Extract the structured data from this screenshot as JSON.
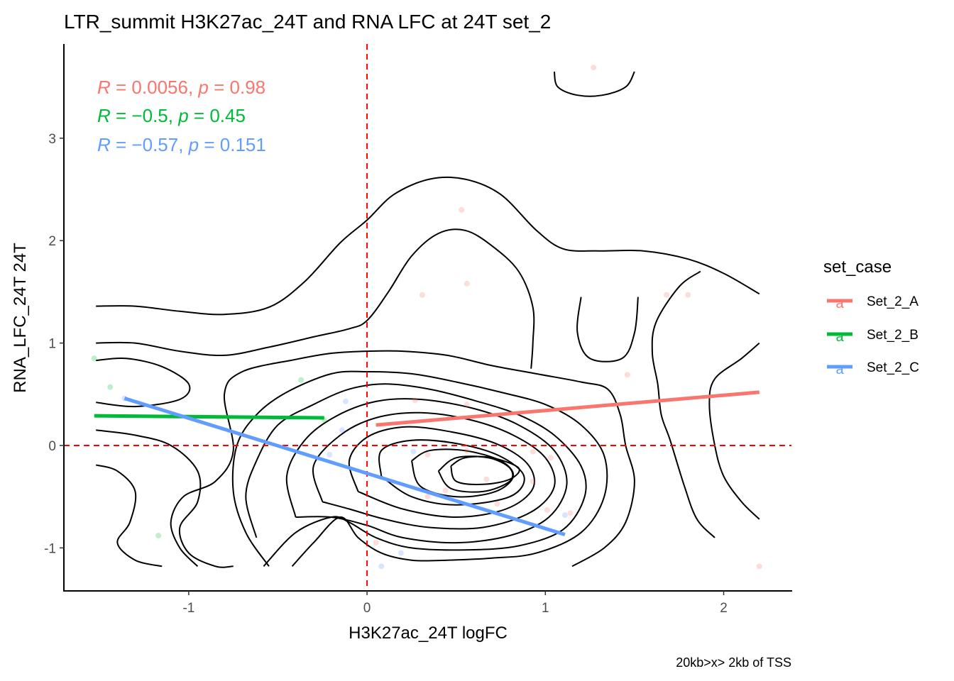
{
  "chart_data": {
    "type": "scatter",
    "title": "LTR_summit H3K27ac_24T and RNA LFC at 24T set_2",
    "xlabel": "H3K27ac_24T logFC",
    "ylabel": "RNA_LFC_24T 24T",
    "caption": "20kb>x> 2kb of TSS",
    "xlim": [
      -1.7,
      2.38
    ],
    "ylim": [
      -1.42,
      3.92
    ],
    "xticks": [
      -1,
      0,
      1,
      2
    ],
    "yticks": [
      -1,
      0,
      1,
      2,
      3
    ],
    "xtick_labels": [
      "-1",
      "0",
      "1",
      "2"
    ],
    "ytick_labels": [
      "-1",
      "0",
      "1",
      "2",
      "3"
    ],
    "grid": false,
    "reference_lines": {
      "x": 0,
      "y": 0,
      "color": "#ff0000",
      "style": "dashed"
    },
    "legend": {
      "title": "set_case",
      "position": "right",
      "key_glyph": "a"
    },
    "series": [
      {
        "name": "Set_2_A",
        "color": "#f8766d",
        "stat_label": {
          "r_value": "0.0056",
          "p_value": "0.98"
        },
        "fit": {
          "x": [
            0.05,
            2.2
          ],
          "y": [
            0.2,
            0.52
          ]
        },
        "points": [
          [
            1.27,
            3.69
          ],
          [
            0.53,
            2.3
          ],
          [
            0.31,
            1.47
          ],
          [
            0.56,
            1.58
          ],
          [
            1.68,
            1.47
          ],
          [
            1.8,
            1.47
          ],
          [
            1.46,
            0.69
          ],
          [
            0.27,
            0.44
          ],
          [
            0.56,
            0.4
          ],
          [
            0.56,
            -0.05
          ],
          [
            0.34,
            -0.09
          ],
          [
            0.93,
            -0.06
          ],
          [
            1.03,
            -0.12
          ],
          [
            0.67,
            -0.33
          ],
          [
            0.93,
            -0.35
          ],
          [
            0.44,
            -0.44
          ],
          [
            0.73,
            -0.57
          ],
          [
            1.01,
            -0.63
          ],
          [
            1.14,
            -0.66
          ],
          [
            0.34,
            -0.5
          ],
          [
            0.05,
            -0.95
          ],
          [
            2.2,
            -1.18
          ]
        ]
      },
      {
        "name": "Set_2_B",
        "color": "#00ba38",
        "stat_label": {
          "r_value": "−0.5",
          "p_value": "0.45"
        },
        "fit": {
          "x": [
            -1.53,
            -0.24
          ],
          "y": [
            0.29,
            0.27
          ]
        },
        "points": [
          [
            -1.53,
            0.85
          ],
          [
            -1.44,
            0.57
          ],
          [
            -0.37,
            0.64
          ],
          [
            -0.24,
            0.25
          ],
          [
            -1.17,
            -0.88
          ]
        ]
      },
      {
        "name": "Set_2_C",
        "color": "#619cff",
        "stat_label": {
          "r_value": "−0.57",
          "p_value": "0.151"
        },
        "fit": {
          "x": [
            -1.36,
            1.11
          ],
          "y": [
            0.46,
            -0.87
          ]
        },
        "points": [
          [
            -1.36,
            0.46
          ],
          [
            -0.12,
            0.43
          ],
          [
            -0.14,
            0.15
          ],
          [
            -0.21,
            -0.09
          ],
          [
            0.26,
            -0.06
          ],
          [
            1.11,
            -0.68
          ],
          [
            0.19,
            -1.05
          ],
          [
            0.08,
            -1.18
          ]
        ]
      }
    ],
    "density_contours": [
      [
        [
          -1.52,
          1.36
        ],
        [
          -1.3,
          1.36
        ],
        [
          -1.05,
          1.31
        ],
        [
          -0.8,
          1.28
        ],
        [
          -0.55,
          1.35
        ],
        [
          -0.35,
          1.6
        ],
        [
          -0.15,
          1.98
        ],
        [
          0.0,
          2.2
        ],
        [
          0.15,
          2.45
        ],
        [
          0.35,
          2.6
        ],
        [
          0.55,
          2.6
        ],
        [
          0.75,
          2.45
        ],
        [
          0.95,
          2.1
        ],
        [
          1.1,
          1.92
        ],
        [
          1.3,
          1.9
        ],
        [
          1.55,
          1.9
        ],
        [
          1.8,
          1.82
        ],
        [
          2.0,
          1.68
        ],
        [
          2.2,
          1.48
        ]
      ],
      [
        [
          -1.52,
          1.0
        ],
        [
          -1.3,
          1.0
        ],
        [
          -1.05,
          0.92
        ],
        [
          -0.8,
          0.88
        ],
        [
          -0.55,
          0.96
        ],
        [
          -0.3,
          1.06
        ],
        [
          -0.1,
          1.14
        ],
        [
          0.0,
          1.22
        ],
        [
          0.12,
          1.5
        ],
        [
          0.25,
          1.85
        ],
        [
          0.4,
          2.07
        ],
        [
          0.55,
          2.1
        ],
        [
          0.7,
          1.95
        ],
        [
          0.85,
          1.7
        ],
        [
          0.93,
          1.35
        ],
        [
          0.93,
          1.0
        ],
        [
          0.92,
          0.75
        ]
      ],
      [
        [
          -1.52,
          0.83
        ],
        [
          -1.35,
          0.85
        ],
        [
          -1.15,
          0.77
        ],
        [
          -1.0,
          0.6
        ],
        [
          -1.05,
          0.45
        ],
        [
          -1.3,
          0.38
        ],
        [
          -1.52,
          0.42
        ]
      ],
      [
        [
          -1.52,
          0.15
        ],
        [
          -1.3,
          0.1
        ],
        [
          -1.1,
          0.0
        ],
        [
          -0.95,
          -0.25
        ],
        [
          -0.95,
          -0.55
        ],
        [
          -1.05,
          -0.8
        ],
        [
          -1.0,
          -1.05
        ],
        [
          -0.85,
          -1.18
        ],
        [
          -0.75,
          -1.18
        ]
      ],
      [
        [
          -1.52,
          -0.19
        ],
        [
          -1.4,
          -0.25
        ],
        [
          -1.3,
          -0.45
        ],
        [
          -1.33,
          -0.75
        ],
        [
          -1.4,
          -0.95
        ],
        [
          -1.3,
          -1.12
        ],
        [
          -1.15,
          -1.18
        ]
      ],
      [
        [
          -0.95,
          -1.18
        ],
        [
          -1.05,
          -1.0
        ],
        [
          -1.1,
          -0.75
        ],
        [
          -1.03,
          -0.5
        ],
        [
          -0.85,
          -0.35
        ],
        [
          -0.75,
          -0.05
        ],
        [
          -0.8,
          0.5
        ],
        [
          -0.7,
          0.72
        ],
        [
          -0.4,
          0.84
        ],
        [
          -0.2,
          0.9
        ],
        [
          0.0,
          0.92
        ],
        [
          0.2,
          0.92
        ],
        [
          0.45,
          0.88
        ],
        [
          0.7,
          0.78
        ],
        [
          0.95,
          0.7
        ],
        [
          1.2,
          0.62
        ],
        [
          1.35,
          0.55
        ],
        [
          1.42,
          0.3
        ],
        [
          1.45,
          0.0
        ],
        [
          1.5,
          -0.35
        ],
        [
          1.45,
          -0.75
        ],
        [
          1.33,
          -1.0
        ],
        [
          1.15,
          -1.18
        ]
      ],
      [
        [
          -0.55,
          -1.18
        ],
        [
          -0.68,
          -0.85
        ],
        [
          -0.75,
          -0.45
        ],
        [
          -0.73,
          0.0
        ],
        [
          -0.62,
          0.3
        ],
        [
          -0.45,
          0.52
        ],
        [
          -0.2,
          0.7
        ],
        [
          0.0,
          0.72
        ],
        [
          0.25,
          0.7
        ],
        [
          0.5,
          0.62
        ],
        [
          0.75,
          0.52
        ],
        [
          1.0,
          0.4
        ],
        [
          1.2,
          0.2
        ],
        [
          1.33,
          -0.1
        ],
        [
          1.33,
          -0.5
        ],
        [
          1.2,
          -0.85
        ],
        [
          0.95,
          -1.05
        ],
        [
          0.7,
          -1.1
        ],
        [
          0.45,
          -1.12
        ],
        [
          0.25,
          -1.12
        ],
        [
          0.08,
          -1.05
        ],
        [
          -0.05,
          -0.9
        ],
        [
          -0.15,
          -0.7
        ],
        [
          -0.3,
          -0.95
        ],
        [
          -0.42,
          -1.18
        ]
      ],
      [
        [
          -0.62,
          -0.9
        ],
        [
          -0.68,
          -0.5
        ],
        [
          -0.62,
          -0.15
        ],
        [
          -0.5,
          0.2
        ],
        [
          -0.3,
          0.4
        ],
        [
          -0.1,
          0.55
        ],
        [
          0.1,
          0.6
        ],
        [
          0.35,
          0.55
        ],
        [
          0.6,
          0.44
        ],
        [
          0.85,
          0.3
        ],
        [
          1.05,
          0.1
        ],
        [
          1.2,
          -0.2
        ],
        [
          1.22,
          -0.5
        ],
        [
          1.1,
          -0.82
        ],
        [
          0.85,
          -0.98
        ],
        [
          0.55,
          -1.02
        ],
        [
          0.25,
          -1.0
        ],
        [
          0.05,
          -0.9
        ],
        [
          -0.1,
          -0.75
        ],
        [
          -0.2,
          -0.7
        ],
        [
          -0.4,
          -0.85
        ],
        [
          -0.58,
          -1.18
        ]
      ],
      [
        [
          -0.4,
          -0.7
        ],
        [
          -0.45,
          -0.3
        ],
        [
          -0.35,
          0.05
        ],
        [
          -0.18,
          0.28
        ],
        [
          0.05,
          0.43
        ],
        [
          0.3,
          0.45
        ],
        [
          0.6,
          0.36
        ],
        [
          0.85,
          0.2
        ],
        [
          1.05,
          -0.05
        ],
        [
          1.12,
          -0.38
        ],
        [
          1.02,
          -0.7
        ],
        [
          0.8,
          -0.88
        ],
        [
          0.5,
          -0.95
        ],
        [
          0.2,
          -0.9
        ],
        [
          0.0,
          -0.78
        ],
        [
          -0.2,
          -0.7
        ],
        [
          -0.4,
          -0.7
        ]
      ],
      [
        [
          -0.25,
          -0.55
        ],
        [
          -0.3,
          -0.2
        ],
        [
          -0.15,
          0.1
        ],
        [
          0.05,
          0.27
        ],
        [
          0.3,
          0.32
        ],
        [
          0.58,
          0.25
        ],
        [
          0.82,
          0.1
        ],
        [
          1.0,
          -0.12
        ],
        [
          1.05,
          -0.4
        ],
        [
          0.92,
          -0.65
        ],
        [
          0.65,
          -0.8
        ],
        [
          0.35,
          -0.8
        ],
        [
          0.1,
          -0.72
        ],
        [
          -0.1,
          -0.62
        ],
        [
          -0.25,
          -0.55
        ]
      ],
      [
        [
          -0.05,
          -0.45
        ],
        [
          -0.1,
          -0.15
        ],
        [
          0.0,
          0.08
        ],
        [
          0.2,
          0.18
        ],
        [
          0.45,
          0.14
        ],
        [
          0.72,
          0.02
        ],
        [
          0.9,
          -0.18
        ],
        [
          0.93,
          -0.42
        ],
        [
          0.78,
          -0.62
        ],
        [
          0.5,
          -0.7
        ],
        [
          0.2,
          -0.62
        ],
        [
          -0.05,
          -0.45
        ]
      ],
      [
        [
          0.08,
          -0.3
        ],
        [
          0.08,
          -0.05
        ],
        [
          0.25,
          0.05
        ],
        [
          0.5,
          0.02
        ],
        [
          0.74,
          -0.1
        ],
        [
          0.88,
          -0.3
        ],
        [
          0.8,
          -0.5
        ],
        [
          0.5,
          -0.58
        ],
        [
          0.25,
          -0.5
        ],
        [
          0.08,
          -0.3
        ]
      ],
      [
        [
          0.25,
          -0.15
        ],
        [
          0.35,
          -0.05
        ],
        [
          0.55,
          -0.05
        ],
        [
          0.75,
          -0.15
        ],
        [
          0.82,
          -0.3
        ],
        [
          0.72,
          -0.45
        ],
        [
          0.5,
          -0.5
        ],
        [
          0.3,
          -0.4
        ],
        [
          0.25,
          -0.15
        ]
      ],
      [
        [
          0.4,
          -0.25
        ],
        [
          0.5,
          -0.12
        ],
        [
          0.68,
          -0.12
        ],
        [
          0.8,
          -0.22
        ],
        [
          0.8,
          -0.35
        ],
        [
          0.65,
          -0.45
        ],
        [
          0.47,
          -0.42
        ],
        [
          0.4,
          -0.25
        ]
      ],
      [
        [
          0.47,
          -0.2
        ],
        [
          0.55,
          -0.12
        ],
        [
          0.7,
          -0.12
        ],
        [
          0.85,
          -0.22
        ],
        [
          0.8,
          -0.33
        ],
        [
          0.65,
          -0.38
        ],
        [
          0.5,
          -0.35
        ],
        [
          0.47,
          -0.2
        ]
      ],
      [
        [
          1.05,
          3.65
        ],
        [
          1.07,
          3.5
        ],
        [
          1.18,
          3.42
        ],
        [
          1.32,
          3.42
        ],
        [
          1.45,
          3.5
        ],
        [
          1.5,
          3.65
        ]
      ],
      [
        [
          1.87,
          1.7
        ],
        [
          1.75,
          1.55
        ],
        [
          1.62,
          1.2
        ],
        [
          1.6,
          0.9
        ],
        [
          1.63,
          0.6
        ],
        [
          1.65,
          0.3
        ],
        [
          1.7,
          0.05
        ],
        [
          1.78,
          -0.4
        ],
        [
          1.85,
          -0.72
        ],
        [
          1.95,
          -0.9
        ]
      ],
      [
        [
          2.2,
          1.0
        ],
        [
          2.1,
          0.85
        ],
        [
          1.95,
          0.65
        ],
        [
          1.92,
          0.4
        ],
        [
          1.95,
          0.0
        ],
        [
          2.0,
          -0.3
        ],
        [
          2.1,
          -0.55
        ],
        [
          2.2,
          -0.72
        ]
      ],
      [
        [
          1.2,
          1.45
        ],
        [
          1.18,
          1.1
        ],
        [
          1.25,
          0.85
        ],
        [
          1.43,
          0.85
        ],
        [
          1.5,
          1.1
        ],
        [
          1.52,
          1.45
        ]
      ]
    ]
  }
}
